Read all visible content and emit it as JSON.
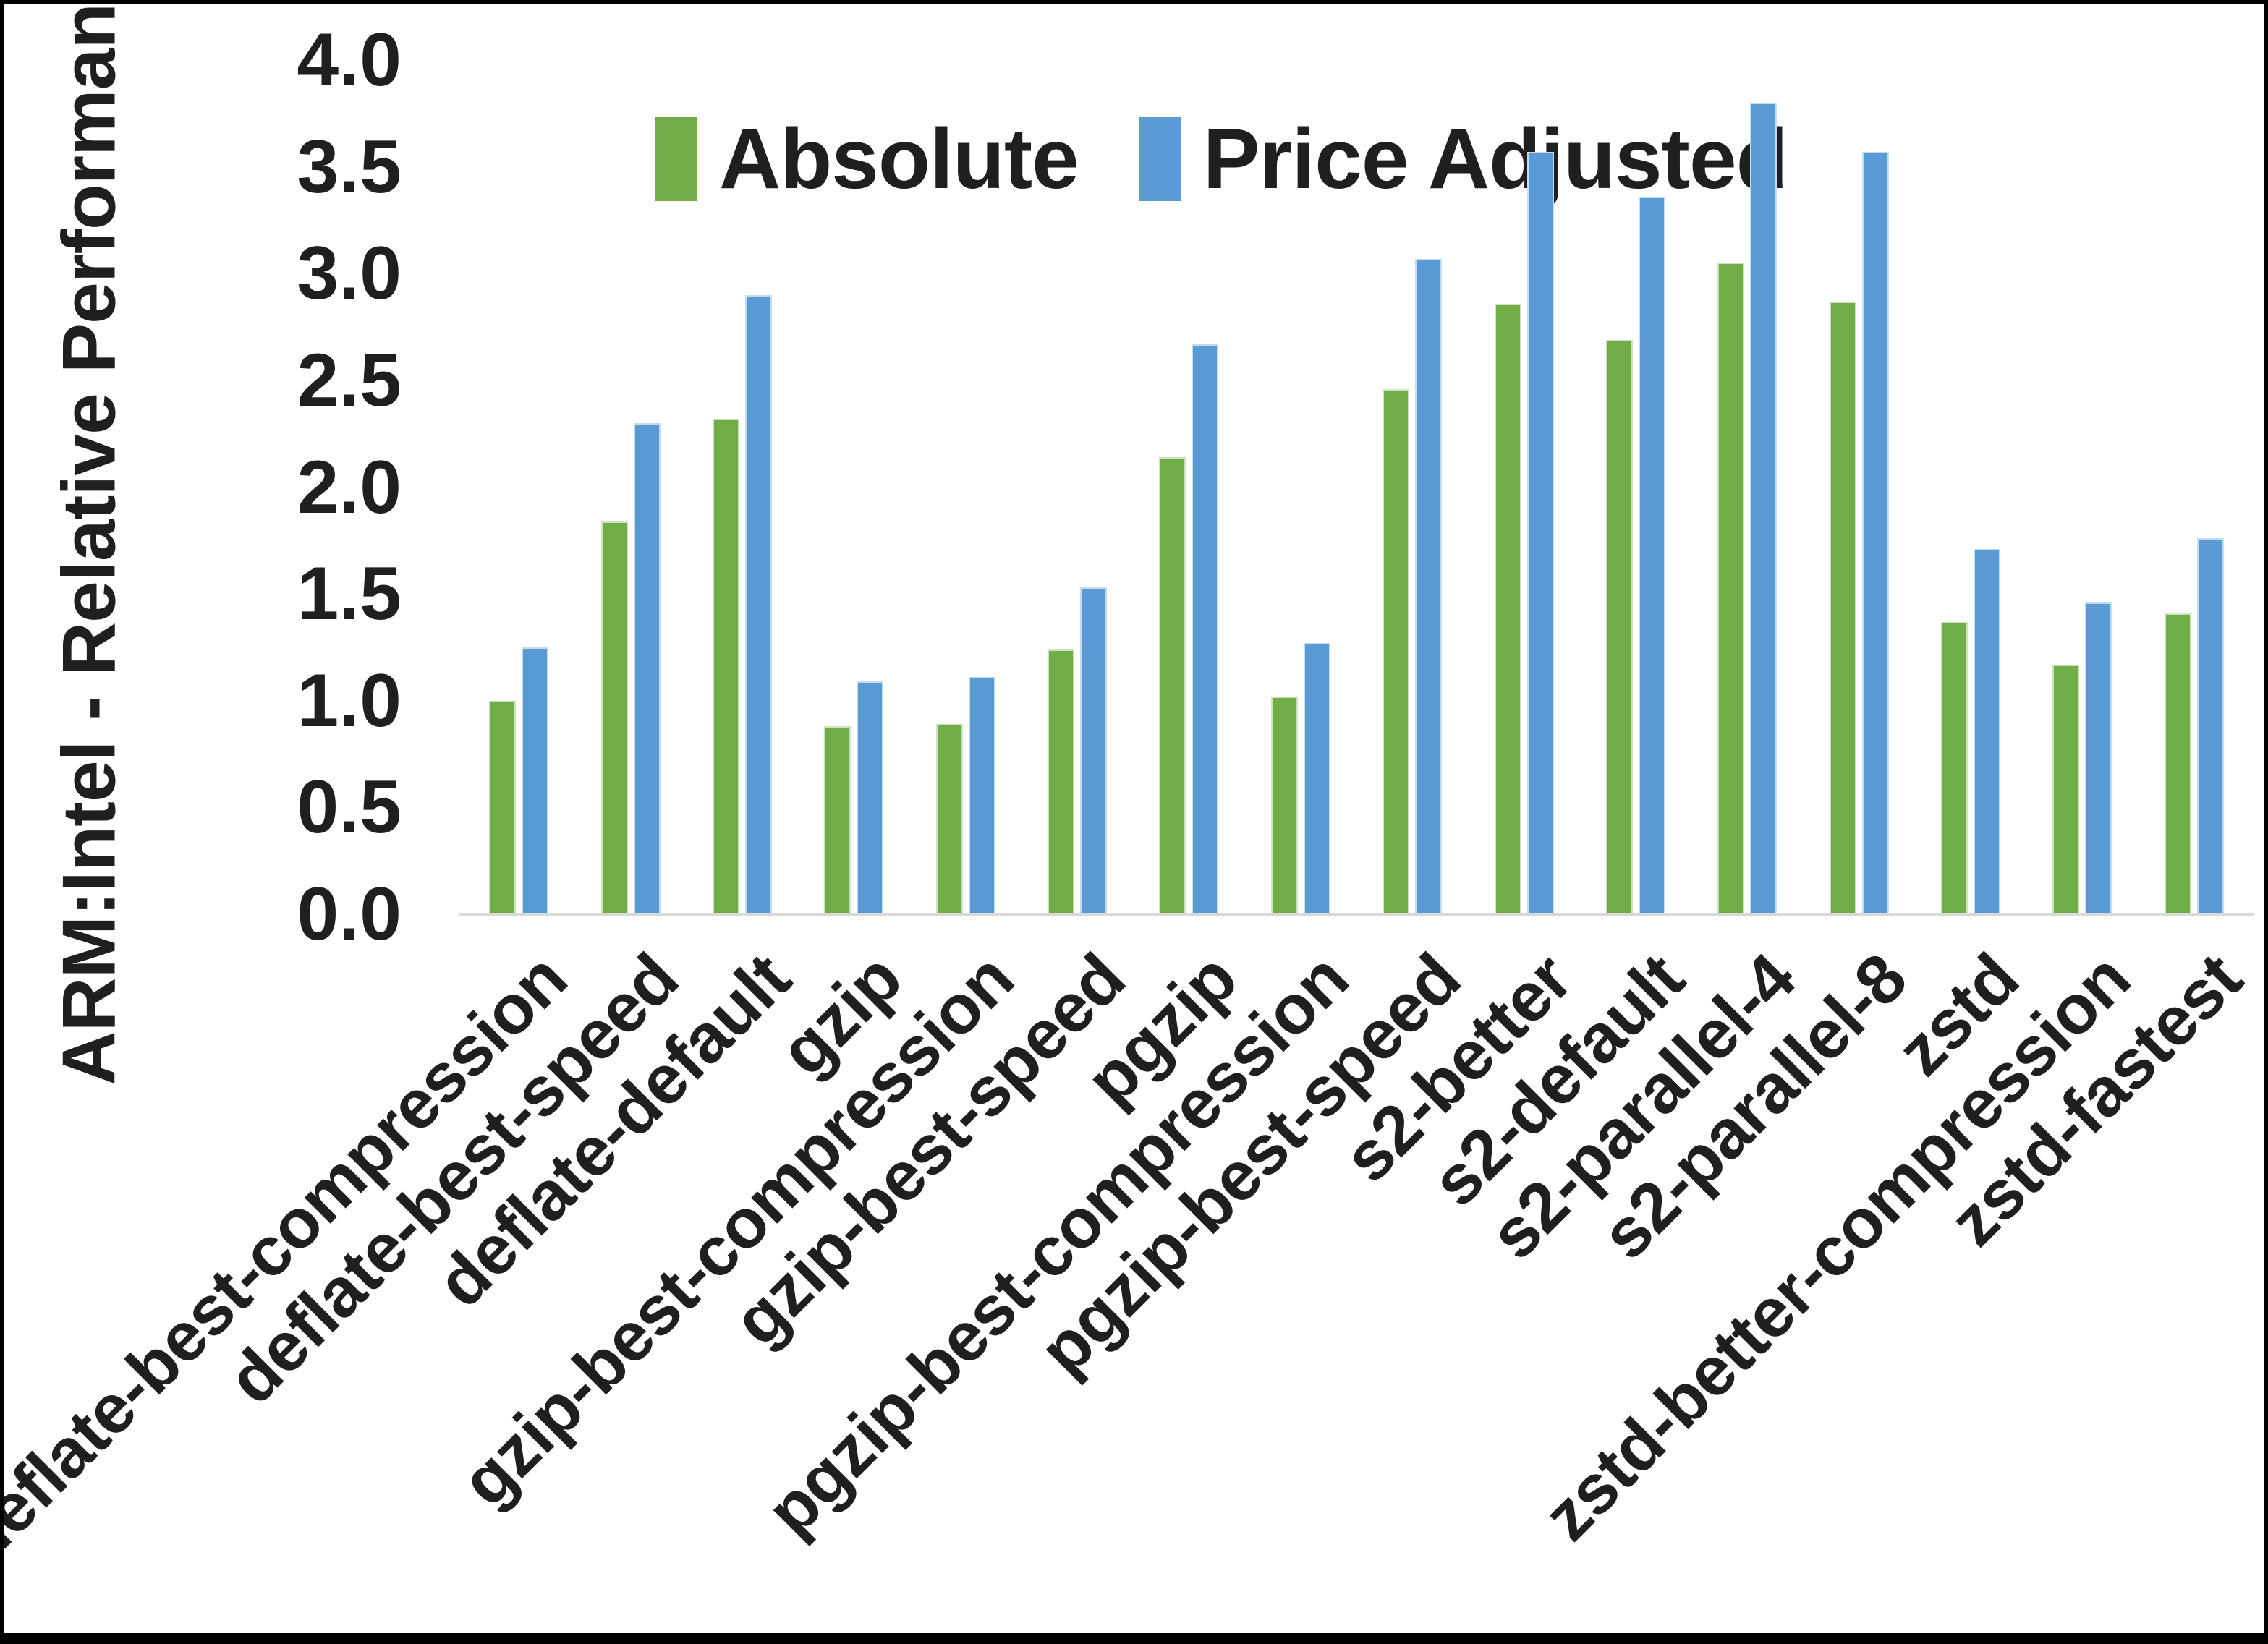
{
  "chart_data": {
    "type": "bar",
    "title": "",
    "ylabel": "ARM:Intel - Relative Performance",
    "xlabel": "",
    "ylim": [
      0.0,
      4.0
    ],
    "ytick_step": 0.5,
    "ytick_labels": [
      "0.0",
      "0.5",
      "1.0",
      "1.5",
      "2.0",
      "2.5",
      "3.0",
      "3.5",
      "4.0"
    ],
    "grid": false,
    "legend_position": "top-center",
    "categories": [
      "deflate-best-compression",
      "deflate-best-speed",
      "deflate-default",
      "gzip",
      "gzip-best-compression",
      "gzip-best-speed",
      "pgzip",
      "pgzip-best-compression",
      "pgzip-best-speed",
      "s2-better",
      "s2-default",
      "s2-parallel-4",
      "s2-parallel-8",
      "zstd",
      "zstd-better-compression",
      "zstd-fastest"
    ],
    "series": [
      {
        "name": "Absolute",
        "color": "#70AD47",
        "values": [
          1.0,
          1.84,
          2.32,
          0.88,
          0.89,
          1.24,
          2.14,
          1.02,
          2.46,
          2.86,
          2.69,
          3.05,
          2.87,
          1.37,
          1.17,
          1.41
        ]
      },
      {
        "name": "Price Adjusted",
        "color": "#5B9BD5",
        "values": [
          1.25,
          2.3,
          2.9,
          1.09,
          1.11,
          1.53,
          2.67,
          1.27,
          3.07,
          3.57,
          3.36,
          3.8,
          3.57,
          1.71,
          1.46,
          1.76
        ]
      }
    ]
  },
  "colors": {
    "axis_line": "#D9D9D9",
    "text": "#1F1F1F",
    "frame": "#000000",
    "background": "#FFFFFF"
  }
}
